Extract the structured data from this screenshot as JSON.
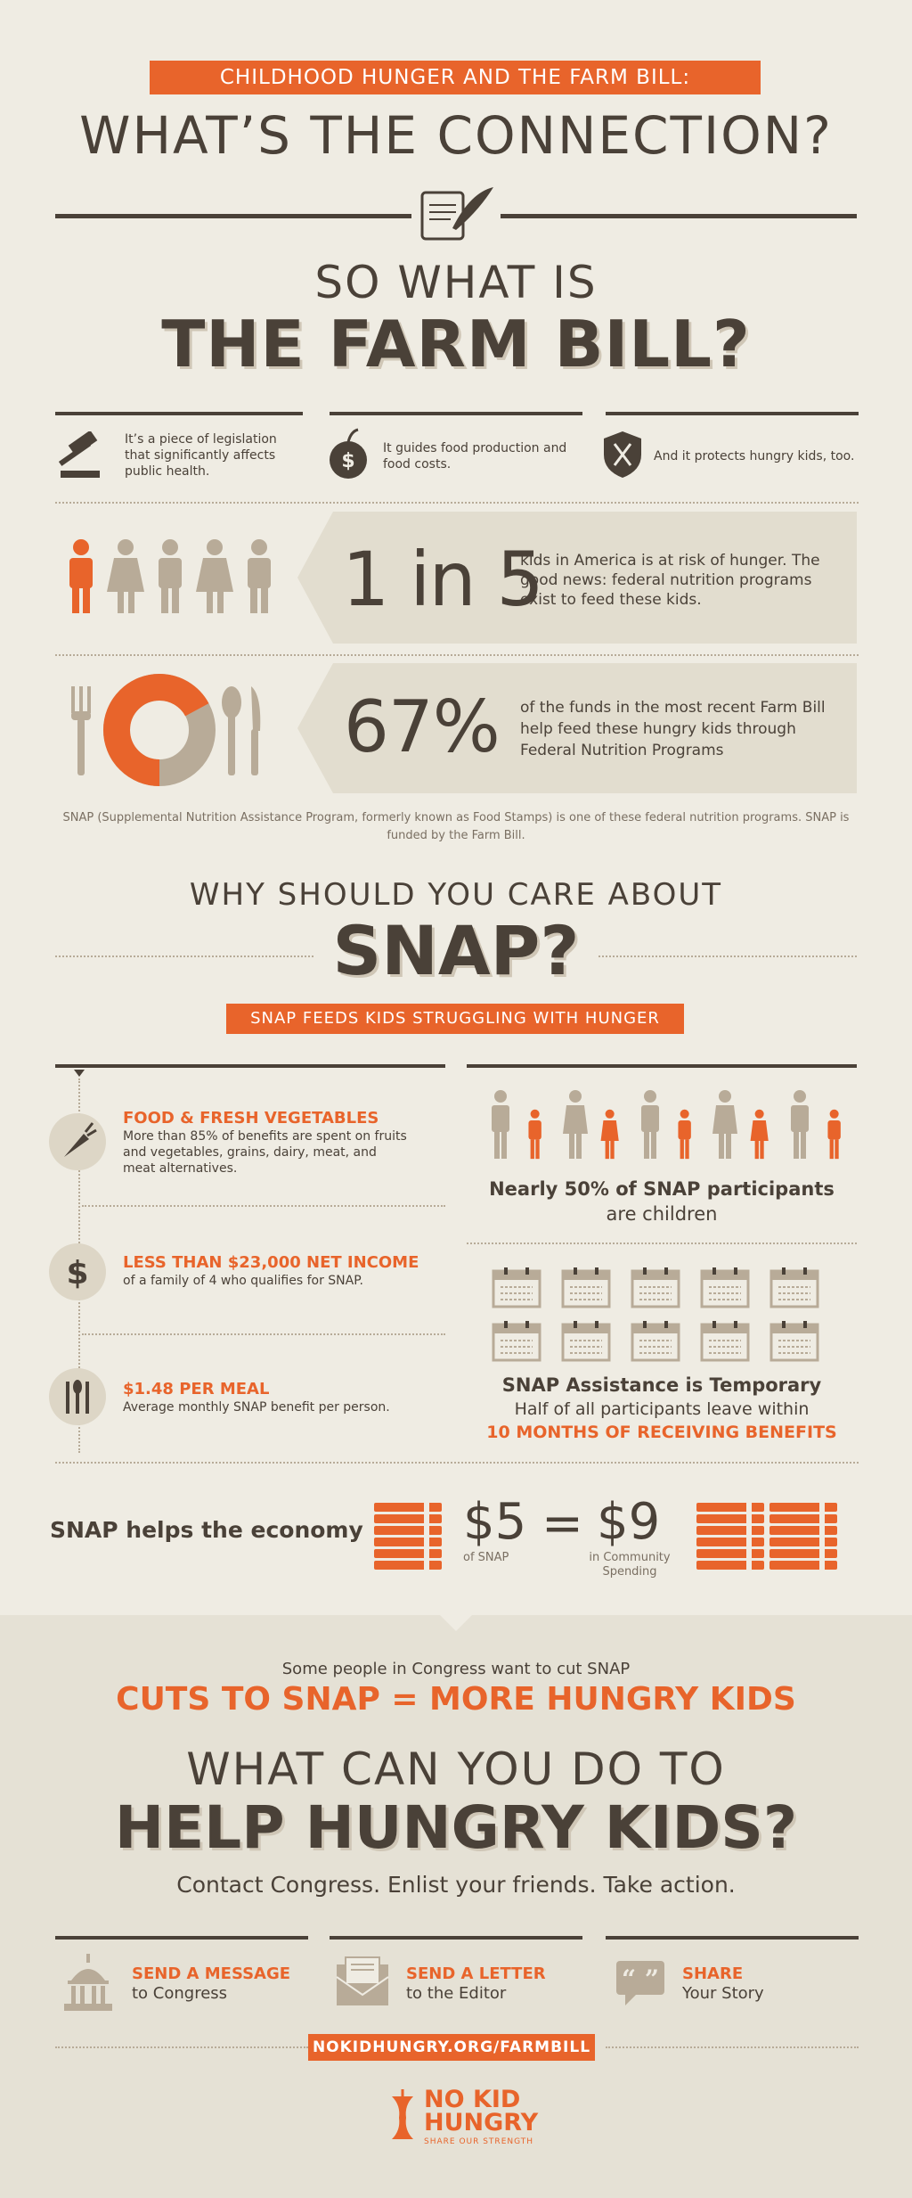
{
  "header": {
    "banner": "CHILDHOOD HUNGER AND THE FARM BILL:",
    "title": "WHAT’S THE CONNECTION?"
  },
  "farm_bill": {
    "kicker": "SO WHAT IS",
    "title": "THE FARM BILL?",
    "points": [
      {
        "icon": "gavel-icon",
        "text": "It’s a piece of legislation that significantly affects public health."
      },
      {
        "icon": "apple-dollar-icon",
        "text": "It guides food production and food costs."
      },
      {
        "icon": "shield-utensils-icon",
        "text": "And it protects hungry kids, too."
      }
    ]
  },
  "stat1": {
    "value": "1 in 5",
    "text": "kids in America is at risk of hunger. The good news: federal nutrition programs exist to feed these kids.",
    "highlighted_of": "1 of 5 figures"
  },
  "stat2": {
    "value": "67%",
    "text": "of the funds in the most recent Farm Bill help feed these hungry kids through Federal Nutrition Programs",
    "donut_fraction": 0.67
  },
  "snap_note": "SNAP (Supplemental Nutrition Assistance Program, formerly known as Food Stamps) is one of these federal nutrition programs. SNAP is funded by the Farm Bill.",
  "why": {
    "kicker": "WHY SHOULD YOU CARE ABOUT",
    "title": "SNAP?",
    "banner": "SNAP FEEDS KIDS STRUGGLING WITH HUNGER"
  },
  "facts": [
    {
      "icon": "carrot-icon",
      "title": "FOOD & FRESH VEGETABLES",
      "text": "More than 85% of benefits are spent on fruits and vegetables, grains, dairy, meat, and meat alternatives."
    },
    {
      "icon": "dollar-icon",
      "title": "LESS THAN $23,000 NET INCOME",
      "text": "of a family of 4 who qualifies for SNAP."
    },
    {
      "icon": "utensils-icon",
      "title": "$1.48 PER MEAL",
      "text": "Average monthly SNAP benefit per person."
    }
  ],
  "participants": {
    "title": "Nearly 50% of SNAP participants",
    "subtitle": "are children"
  },
  "temporary": {
    "title": "SNAP Assistance is Temporary",
    "text": "Half of all participants leave within",
    "highlight": "10 MONTHS OF RECEIVING BENEFITS"
  },
  "economy": {
    "label": "SNAP helps the economy",
    "left_value": "$5",
    "left_caption": "of SNAP",
    "equals": "=",
    "right_value": "$9",
    "right_caption": "in Community Spending"
  },
  "cuts": {
    "lead": "Some people in Congress want to cut SNAP",
    "headline": "CUTS TO SNAP = MORE HUNGRY KIDS"
  },
  "action": {
    "kicker": "WHAT CAN YOU DO TO",
    "title": "HELP HUNGRY KIDS?",
    "subtitle": "Contact Congress. Enlist your friends. Take action."
  },
  "actions": [
    {
      "icon": "capitol-icon",
      "title": "SEND A MESSAGE",
      "sub": "to Congress"
    },
    {
      "icon": "envelope-icon",
      "title": "SEND A LETTER",
      "sub": "to the Editor"
    },
    {
      "icon": "speech-bubble-icon",
      "title": "SHARE",
      "sub": "Your Story"
    }
  ],
  "url": "NOKIDHUNGRY.ORG/FARMBILL",
  "logo": {
    "line1": "NO KID",
    "line2": "HUNGRY",
    "tagline": "SHARE OUR STRENGTH"
  },
  "colors": {
    "accent": "#e8642b",
    "dark": "#4a4138",
    "tan": "#b8ab98",
    "bg": "#efece3"
  }
}
